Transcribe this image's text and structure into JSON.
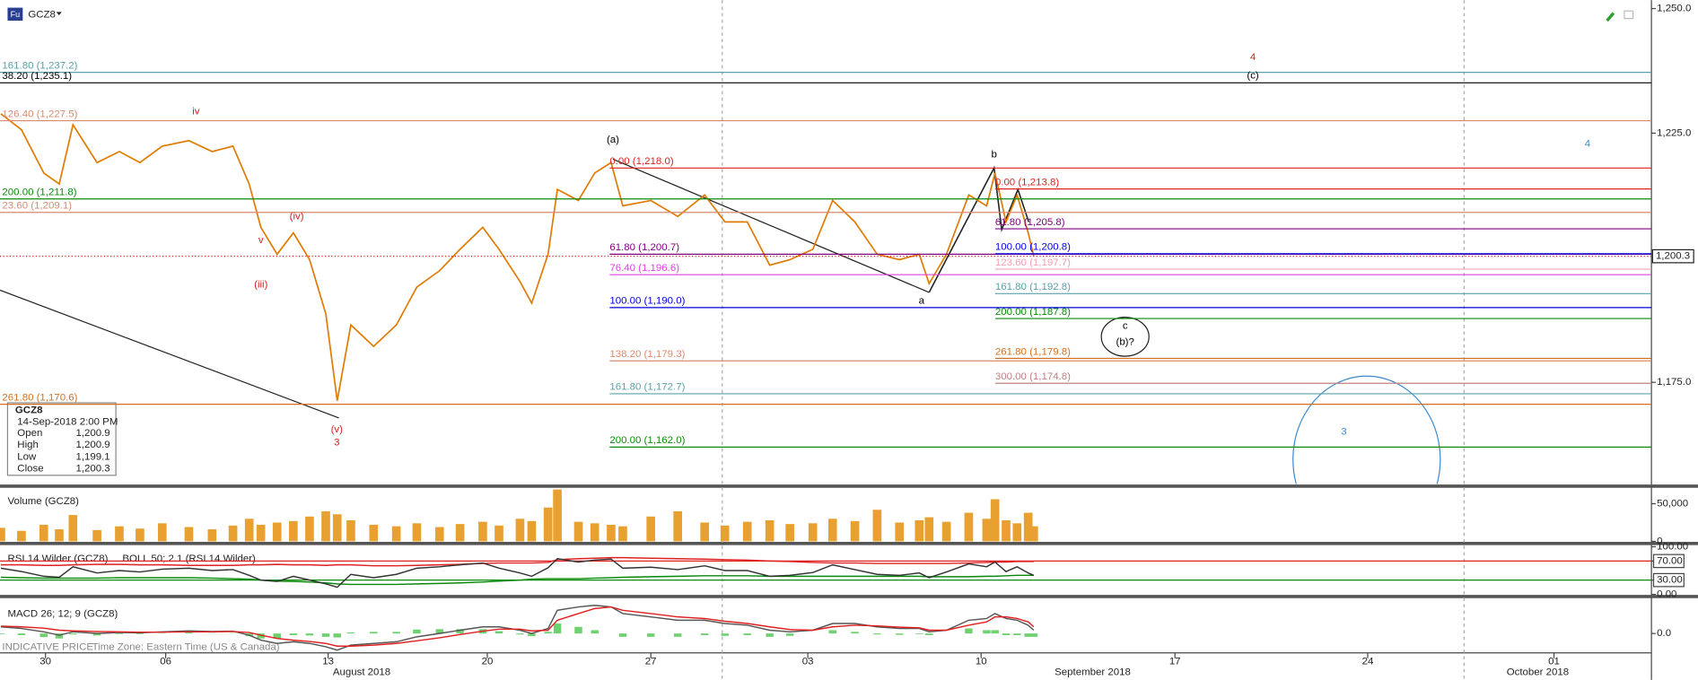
{
  "ui": {
    "symbol_icon": "Fu",
    "symbol": "GCZ8",
    "info": {
      "symbol": "GCZ8",
      "datetime": "14-Sep-2018 2:00 PM",
      "rows": [
        [
          "Open",
          "1,200.9"
        ],
        [
          "High",
          "1,200.9"
        ],
        [
          "Low",
          "1,199.1"
        ],
        [
          "Close",
          "1,200.3"
        ]
      ]
    },
    "months": [
      "August 2018",
      "September 2018",
      "October 2018"
    ],
    "footer": "INDICATIVE PRICE",
    "timezone": "Time Zone: Eastern Time (US & Canada)"
  },
  "chart_data": [
    {
      "type": "line",
      "color": "#e07b00",
      "x": [
        -2.6,
        -1.4,
        -0.1,
        0.8,
        1.6,
        3.0,
        4.3,
        5.5,
        6.8,
        8.0,
        9.0,
        9.9,
        10.6,
        11.1,
        11.8,
        12.5,
        13.2,
        13.9,
        14.4,
        15.0,
        16.0,
        17.0,
        17.9,
        18.9,
        19.8,
        20.8,
        21.5,
        22.4,
        22.9,
        23.6,
        24.0,
        24.9,
        25.6,
        26.3,
        26.8,
        28.0,
        29.2,
        30.4,
        31.3,
        32.3,
        33.3,
        34.2,
        35.2,
        36.0,
        36.9,
        37.8,
        38.7,
        39.5,
        39.9,
        40.6,
        41.5,
        42.2,
        42.5,
        42.9,
        43.3,
        43.7,
        43.9
      ],
      "values": [
        1228.9,
        1225.7,
        1217,
        1214.8,
        1226.7,
        1219.1,
        1221.3,
        1219.1,
        1222.4,
        1223.5,
        1221.3,
        1222.4,
        1214.8,
        1206.1,
        1200.7,
        1205,
        1199.6,
        1188.7,
        1171.3,
        1186.5,
        1182.2,
        1186.5,
        1194.1,
        1197.4,
        1201.7,
        1206.1,
        1201.7,
        1195.2,
        1190.9,
        1200.7,
        1213.7,
        1211.5,
        1217,
        1219.1,
        1210.4,
        1211.5,
        1208.3,
        1212.6,
        1207.2,
        1207.2,
        1198.5,
        1199.6,
        1201.7,
        1211.5,
        1207.2,
        1200.7,
        1199.6,
        1200.7,
        1194.8,
        1200.7,
        1212.6,
        1210.4,
        1217,
        1207.2,
        1212.6,
        1205,
        1200.3
      ],
      "xlim": [
        -2.65,
        66.7
      ],
      "xticks": [
        {
          "value": 0,
          "label": "30"
        },
        {
          "value": 7,
          "label": "06"
        },
        {
          "value": 14,
          "label": "13"
        },
        {
          "value": 21,
          "label": "20"
        },
        {
          "value": 28,
          "label": "27"
        },
        {
          "value": 35,
          "label": "03"
        },
        {
          "value": 42,
          "label": "10"
        },
        {
          "value": 49,
          "label": "17"
        },
        {
          "value": 56,
          "label": "24"
        },
        {
          "value": 63,
          "label": "01"
        }
      ],
      "ylim": [
        1154.6,
        1251.7
      ],
      "yticks": [
        {
          "value": 1175,
          "label": "1,175.0"
        },
        {
          "value": 1225,
          "label": "1,225.0"
        },
        {
          "value": 1250,
          "label": "1,250.0"
        }
      ],
      "last_value": {
        "value": 1200.3,
        "label": "1,200.3",
        "color": "#e02020"
      },
      "levels_left": [
        {
          "label": "161.80 (1,237.2)",
          "value": 1237.2,
          "color": "#5aa0a8"
        },
        {
          "label": "38.20 (1,235.1)",
          "value": 1235.1,
          "color": "#000000"
        },
        {
          "label": "126.40 (1,227.5)",
          "value": 1227.5,
          "color": "#d88a70"
        },
        {
          "label": "200.00 (1,211.8)",
          "value": 1211.8,
          "color": "#0a8a0a"
        },
        {
          "label": "23.60 (1,209.1)",
          "value": 1209.1,
          "color": "#d88a70"
        },
        {
          "label": "261.80 (1,170.6)",
          "value": 1170.6,
          "color": "#d07020"
        }
      ],
      "levels_mid": [
        {
          "label": "0.00 (1,218.0)",
          "value": 1218.0,
          "color": "#e02020"
        },
        {
          "label": "61.80 (1,200.7)",
          "value": 1200.7,
          "color": "#800080"
        },
        {
          "label": "76.40 (1,196.6)",
          "value": 1196.6,
          "color": "#e040e0"
        },
        {
          "label": "100.00 (1,190.0)",
          "value": 1190.0,
          "color": "#0000e0"
        },
        {
          "label": "138.20 (1,179.3)",
          "value": 1179.3,
          "color": "#d88a70"
        },
        {
          "label": "161.80 (1,172.7)",
          "value": 1172.7,
          "color": "#5aa0a8"
        },
        {
          "label": "200.00 (1,162.0)",
          "value": 1162.0,
          "color": "#0a8a0a"
        }
      ],
      "levels_right": [
        {
          "label": "0.00 (1,213.8)",
          "value": 1213.8,
          "color": "#e02020"
        },
        {
          "label": "61.80 (1,205.8)",
          "value": 1205.8,
          "color": "#800080"
        },
        {
          "label": "100.00 (1,200.8)",
          "value": 1200.8,
          "color": "#0000e0"
        },
        {
          "label": "123.60 (1,197.7)",
          "value": 1197.7,
          "color": "#f0a0b0"
        },
        {
          "label": "161.80 (1,192.8)",
          "value": 1192.8,
          "color": "#5aa0a8"
        },
        {
          "label": "200.00 (1,187.8)",
          "value": 1187.8,
          "color": "#0a8a0a"
        },
        {
          "label": "261.80 (1,179.8)",
          "value": 1179.8,
          "color": "#d07020"
        },
        {
          "label": "300.00 (1,174.8)",
          "value": 1174.8,
          "color": "#c08080"
        }
      ],
      "annotations": [
        {
          "text": "iv",
          "color": "#d62020"
        },
        {
          "text": "(iv)",
          "color": "#d62020"
        },
        {
          "text": "v",
          "color": "#d62020"
        },
        {
          "text": "(iii)",
          "color": "#d62020"
        },
        {
          "text": "(v)",
          "color": "#d62020"
        },
        {
          "text": "3",
          "color": "#d62020"
        },
        {
          "text": "(a)",
          "color": "#000000"
        },
        {
          "text": "b",
          "color": "#000000"
        },
        {
          "text": "a",
          "color": "#000000"
        },
        {
          "text": "4",
          "color": "#d62020"
        },
        {
          "text": "(c)",
          "color": "#000000"
        },
        {
          "text": "4",
          "color": "#3a8ad0"
        },
        {
          "text": "c",
          "color": "#000000"
        },
        {
          "text": "(b)?",
          "color": "#000000"
        },
        {
          "text": "3",
          "color": "#3a8ad0"
        }
      ]
    },
    {
      "type": "bar",
      "title": "Volume (GCZ8)",
      "color": "#e8a030",
      "values": [
        18000,
        14000,
        22000,
        16000,
        35000,
        15000,
        20000,
        17000,
        24000,
        19000,
        16000,
        21000,
        30000,
        22000,
        25000,
        27000,
        33000,
        40000,
        36000,
        28000,
        22000,
        20000,
        24000,
        19000,
        23000,
        26000,
        21000,
        30000,
        27000,
        45000,
        69000,
        26000,
        24000,
        22000,
        20000,
        33000,
        40000,
        25000,
        21000,
        26000,
        28000,
        23000,
        24000,
        30000,
        27000,
        42000,
        25000,
        28000,
        32000,
        26000,
        38000,
        30000,
        56000,
        28000,
        24000,
        38000,
        20000
      ],
      "ylim": [
        0,
        69100
      ],
      "yticks": [
        0,
        {
          "value": 50000,
          "label": "50,000"
        }
      ]
    },
    {
      "type": "line",
      "title": "RSI 14 Wilder (GCZ8)",
      "subtitle": "BOLL 50; 2.1 (RSI 14 Wilder)",
      "ylim": [
        0,
        100
      ],
      "yticks": [
        {
          "value": 0,
          "label": "0.00"
        },
        {
          "value": 30,
          "label": "30.00"
        },
        {
          "value": 70,
          "label": "70.00"
        },
        {
          "value": 100,
          "label": "100.00"
        }
      ],
      "hlines": [
        {
          "value": 70,
          "color": "#e02020"
        },
        {
          "value": 30,
          "color": "#0a8a0a"
        }
      ],
      "series": [
        {
          "color": "#e02020",
          "values": [
            62,
            62,
            61,
            61,
            62,
            63,
            63,
            62,
            62,
            61,
            61,
            61,
            62,
            62,
            63,
            62,
            62,
            61,
            62,
            62,
            60,
            60,
            61,
            62,
            63,
            65,
            66,
            66,
            66,
            67,
            73,
            75,
            76,
            77,
            77,
            76,
            75,
            74,
            73,
            72,
            70,
            69,
            67,
            66,
            66,
            65,
            65,
            65,
            65,
            65,
            66,
            67,
            68,
            68,
            69,
            69,
            69
          ]
        },
        {
          "color": "#0a8a0a",
          "values": [
            36,
            35,
            34,
            34,
            34,
            34,
            35,
            35,
            35,
            35,
            34,
            33,
            32,
            30,
            28,
            27,
            26,
            24,
            22,
            21,
            21,
            21,
            22,
            23,
            24,
            26,
            28,
            30,
            32,
            33,
            33,
            33,
            34,
            35,
            36,
            37,
            38,
            39,
            39,
            39,
            38,
            38,
            38,
            38,
            38,
            38,
            38,
            38,
            37,
            37,
            37,
            38,
            38,
            39,
            40,
            40,
            40
          ]
        },
        {
          "color": "#333333",
          "values": [
            55,
            48,
            38,
            36,
            58,
            45,
            50,
            47,
            53,
            55,
            50,
            52,
            40,
            30,
            27,
            38,
            30,
            22,
            15,
            42,
            35,
            42,
            55,
            58,
            62,
            66,
            55,
            45,
            38,
            56,
            75,
            68,
            72,
            74,
            55,
            57,
            52,
            60,
            50,
            50,
            38,
            40,
            46,
            62,
            52,
            42,
            40,
            45,
            35,
            47,
            64,
            58,
            68,
            48,
            58,
            45,
            40
          ]
        }
      ]
    },
    {
      "type": "line",
      "title": "MACD 26; 12; 9 (GCZ8)",
      "ylim": [
        -5.5,
        9.5
      ],
      "yticks": [
        {
          "value": 0,
          "label": "0.0"
        }
      ],
      "series": [
        {
          "type": "bar",
          "color": "#6fd06f",
          "values": [
            -0.2,
            -0.5,
            -1.1,
            -1.5,
            -0.3,
            -0.6,
            -0.2,
            -0.2,
            0.1,
            0.3,
            0.1,
            0.1,
            -0.8,
            -1.5,
            -1.5,
            -0.5,
            -0.6,
            -1,
            -1.2,
            0.3,
            0.5,
            0.5,
            1.2,
            1.3,
            1.3,
            1.3,
            0.7,
            -0.3,
            -0.8,
            0.5,
            3,
            2,
            1,
            0,
            -1,
            -1,
            -1,
            -0.5,
            -0.7,
            -0.5,
            -1,
            -0.7,
            0,
            1,
            0.5,
            -0.3,
            -0.4,
            -0.2,
            -0.5,
            0,
            1.5,
            1,
            1,
            -0.5,
            -0.5,
            -1,
            -1
          ]
        },
        {
          "color": "#555555",
          "values": [
            2,
            1.5,
            0.5,
            -0.5,
            0.5,
            0,
            0.3,
            0.2,
            0.5,
            0.8,
            0.6,
            0.7,
            -0.5,
            -2,
            -3,
            -2.5,
            -3,
            -4,
            -5,
            -3.5,
            -3,
            -2.5,
            -1,
            0,
            1,
            2,
            2,
            1,
            0,
            1.5,
            7,
            8,
            8.5,
            8,
            6,
            5,
            4,
            4,
            3,
            2.5,
            1,
            0.5,
            1,
            3,
            3,
            2,
            1.5,
            1.5,
            0.5,
            1,
            4,
            4.5,
            6,
            4.5,
            4,
            2.5,
            1
          ]
        },
        {
          "color": "#e02020",
          "values": [
            2.2,
            2,
            1.6,
            1,
            0.8,
            0.6,
            0.5,
            0.4,
            0.4,
            0.5,
            0.5,
            0.6,
            0.3,
            -0.5,
            -1.5,
            -2,
            -2.4,
            -3,
            -3.8,
            -3.8,
            -3.5,
            -3,
            -2.2,
            -1.3,
            -0.3,
            0.7,
            1.3,
            1.3,
            0.8,
            1,
            4,
            6,
            7.5,
            8,
            7,
            6,
            5,
            4.5,
            3.7,
            3,
            2,
            1.2,
            1,
            2,
            2.5,
            2.3,
            1.9,
            1.7,
            1,
            1,
            2.5,
            3.5,
            5,
            5,
            4.5,
            3.5,
            2
          ]
        }
      ]
    }
  ]
}
